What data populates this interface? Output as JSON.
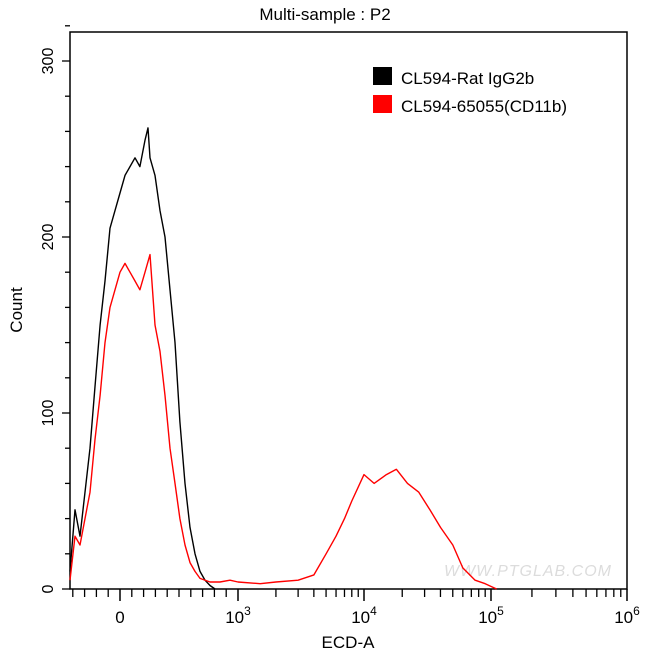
{
  "chart_data": {
    "type": "line",
    "subtype": "histogram",
    "title": "Multi-sample : P2",
    "xlabel": "ECD-A",
    "ylabel": "Count",
    "x_scale": "biexponential",
    "xlim": [
      -424,
      1000000
    ],
    "ylim": [
      0,
      320
    ],
    "grid": false,
    "legend_placement": "top-right",
    "watermark": "WWW.PTGLAB.COM",
    "y_ticks": [
      0,
      100,
      200,
      300
    ],
    "x_ticks": [
      {
        "value": 0,
        "base": "0",
        "exp": ""
      },
      {
        "value": 1000,
        "base": "10",
        "exp": "3"
      },
      {
        "value": 10000,
        "base": "10",
        "exp": "4"
      },
      {
        "value": 100000,
        "base": "10",
        "exp": "5"
      },
      {
        "value": 1000000,
        "base": "10",
        "exp": "6"
      }
    ],
    "series": [
      {
        "name": "CL594-Rat IgG2b",
        "color": "#000000",
        "x": [
          -424,
          -381,
          -339,
          -297,
          -254,
          -212,
          -169,
          -127,
          -85,
          -42,
          0,
          42,
          85,
          127,
          169,
          212,
          237,
          254,
          297,
          339,
          381,
          424,
          466,
          508,
          551,
          593,
          636,
          678,
          720,
          763,
          805
        ],
        "y": [
          10,
          45,
          30,
          55,
          80,
          115,
          150,
          175,
          205,
          215,
          225,
          235,
          240,
          245,
          240,
          255,
          262,
          245,
          235,
          215,
          200,
          170,
          140,
          95,
          60,
          35,
          20,
          10,
          5,
          2,
          0
        ]
      },
      {
        "name": "CL594-65055(CD11b)",
        "color": "#ff0000",
        "x": [
          -424,
          -381,
          -339,
          -297,
          -254,
          -212,
          -169,
          -127,
          -85,
          -42,
          0,
          42,
          85,
          127,
          169,
          212,
          254,
          297,
          339,
          381,
          424,
          466,
          508,
          551,
          593,
          636,
          678,
          763,
          847,
          932,
          1000,
          1500,
          2000,
          3000,
          4000,
          5000,
          6000,
          7000,
          8000,
          10000,
          12000,
          15000,
          18000,
          22000,
          27000,
          33000,
          40000,
          50000,
          60000,
          75000,
          90000,
          110000
        ],
        "y": [
          5,
          30,
          25,
          40,
          55,
          85,
          110,
          140,
          160,
          170,
          180,
          185,
          180,
          175,
          170,
          180,
          190,
          150,
          135,
          110,
          80,
          60,
          40,
          25,
          15,
          10,
          6,
          4,
          4,
          5,
          4,
          3,
          4,
          5,
          8,
          20,
          30,
          40,
          50,
          65,
          60,
          65,
          68,
          60,
          55,
          45,
          35,
          25,
          12,
          5,
          3,
          0
        ]
      }
    ]
  }
}
